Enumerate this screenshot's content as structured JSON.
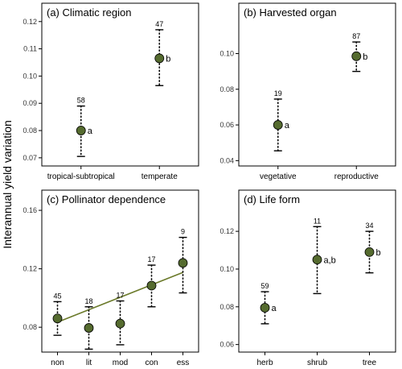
{
  "ylabel": "Interannual yield variation",
  "style": {
    "point_fill": "#556b2f",
    "trend_color": "#6b7a2a",
    "frame_color": "#000000"
  },
  "chart_data": [
    {
      "type": "scatter",
      "title": "(a) Climatic region",
      "ylim": [
        0.067,
        0.122
      ],
      "yticks": [
        "0.07",
        "0.08",
        "0.09",
        "0.10",
        "0.11",
        "0.12"
      ],
      "categories": [
        "tropical-subtropical",
        "temperate"
      ],
      "values": [
        0.08,
        0.1065
      ],
      "lower": [
        0.0705,
        0.0965
      ],
      "upper": [
        0.089,
        0.117
      ],
      "n": [
        "58",
        "47"
      ],
      "groups": [
        "a",
        "b"
      ]
    },
    {
      "type": "scatter",
      "title": "(b) Harvested organ",
      "ylim": [
        0.037,
        0.121
      ],
      "yticks": [
        "0.04",
        "0.06",
        "0.08",
        "0.10"
      ],
      "categories": [
        "vegetative",
        "reproductive"
      ],
      "values": [
        0.06,
        0.0985
      ],
      "lower": [
        0.0455,
        0.09
      ],
      "upper": [
        0.0745,
        0.1065
      ],
      "n": [
        "19",
        "87"
      ],
      "groups": [
        "a",
        "b"
      ]
    },
    {
      "type": "scatter",
      "title": "(c) Pollinator dependence",
      "ylim": [
        0.063,
        0.165
      ],
      "yticks": [
        "0.08",
        "0.12",
        "0.16"
      ],
      "categories": [
        "non",
        "lit",
        "mod",
        "con",
        "ess"
      ],
      "values": [
        0.086,
        0.0795,
        0.0825,
        0.1085,
        0.124
      ],
      "lower": [
        0.0745,
        0.065,
        0.068,
        0.094,
        0.1035
      ],
      "upper": [
        0.0975,
        0.094,
        0.098,
        0.1225,
        0.1415
      ],
      "n": [
        "45",
        "18",
        "17",
        "17",
        "9"
      ],
      "groups": [
        "",
        "",
        "",
        "",
        ""
      ],
      "trend": [
        0.0835,
        0.1175
      ]
    },
    {
      "type": "scatter",
      "title": "(d) Life form",
      "ylim": [
        0.056,
        0.135
      ],
      "yticks": [
        "0.06",
        "0.08",
        "0.10",
        "0.12"
      ],
      "categories": [
        "herb",
        "shrub",
        "tree"
      ],
      "values": [
        0.0795,
        0.105,
        0.109
      ],
      "lower": [
        0.071,
        0.087,
        0.098
      ],
      "upper": [
        0.088,
        0.1225,
        0.12
      ],
      "n": [
        "59",
        "11",
        "34"
      ],
      "groups": [
        "a",
        "a,b",
        "b"
      ]
    }
  ]
}
